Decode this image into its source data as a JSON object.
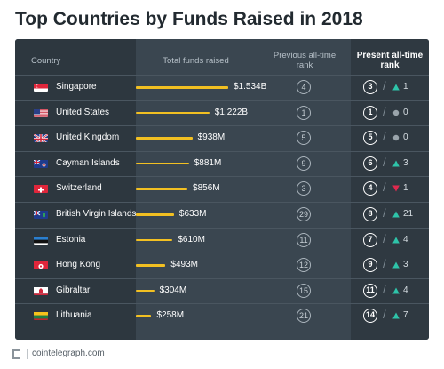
{
  "title": "Top Countries by Funds Raised in 2018",
  "footer": {
    "site": "cointelegraph.com"
  },
  "headers": {
    "country": "Country",
    "funds": "Total funds raised",
    "previous": "Previous all-time rank",
    "present": "Present all-time rank"
  },
  "colors": {
    "bar": "#f2c022",
    "up": "#2ec4a9",
    "down": "#e0294e",
    "same": "#9aa4ab"
  },
  "chart_data": {
    "type": "table",
    "title": "Top Countries by Funds Raised in 2018",
    "columns": [
      "Country",
      "Total funds raised",
      "Previous all-time rank",
      "Present all-time rank"
    ],
    "value_unit": "USD",
    "rows": [
      {
        "country": "Singapore",
        "flag": "singapore-flag",
        "funds_label": "$1.534B",
        "funds_value": 1534000000,
        "previous_rank": "4",
        "present_rank": "3",
        "change": "1",
        "direction": "up"
      },
      {
        "country": "United States",
        "flag": "united-states-flag",
        "funds_label": "$1.222B",
        "funds_value": 1222000000,
        "previous_rank": "1",
        "present_rank": "1",
        "change": "0",
        "direction": "same"
      },
      {
        "country": "United Kingdom",
        "flag": "united-kingdom-flag",
        "funds_label": "$938M",
        "funds_value": 938000000,
        "previous_rank": "5",
        "present_rank": "5",
        "change": "0",
        "direction": "same"
      },
      {
        "country": "Cayman Islands",
        "flag": "cayman-islands-flag",
        "funds_label": "$881M",
        "funds_value": 881000000,
        "previous_rank": "9",
        "present_rank": "6",
        "change": "3",
        "direction": "up"
      },
      {
        "country": "Switzerland",
        "flag": "switzerland-flag",
        "funds_label": "$856M",
        "funds_value": 856000000,
        "previous_rank": "3",
        "present_rank": "4",
        "change": "1",
        "direction": "down"
      },
      {
        "country": "British Virgin Islands",
        "flag": "british-virgin-islands-flag",
        "funds_label": "$633M",
        "funds_value": 633000000,
        "previous_rank": "29",
        "present_rank": "8",
        "change": "21",
        "direction": "up"
      },
      {
        "country": "Estonia",
        "flag": "estonia-flag",
        "funds_label": "$610M",
        "funds_value": 610000000,
        "previous_rank": "11",
        "present_rank": "7",
        "change": "4",
        "direction": "up"
      },
      {
        "country": "Hong Kong",
        "flag": "hong-kong-flag",
        "funds_label": "$493M",
        "funds_value": 493000000,
        "previous_rank": "12",
        "present_rank": "9",
        "change": "3",
        "direction": "up"
      },
      {
        "country": "Gibraltar",
        "flag": "gibraltar-flag",
        "funds_label": "$304M",
        "funds_value": 304000000,
        "previous_rank": "15",
        "present_rank": "11",
        "change": "4",
        "direction": "up"
      },
      {
        "country": "Lithuania",
        "flag": "lithuania-flag",
        "funds_label": "$258M",
        "funds_value": 258000000,
        "previous_rank": "21",
        "present_rank": "14",
        "change": "7",
        "direction": "up"
      }
    ]
  }
}
